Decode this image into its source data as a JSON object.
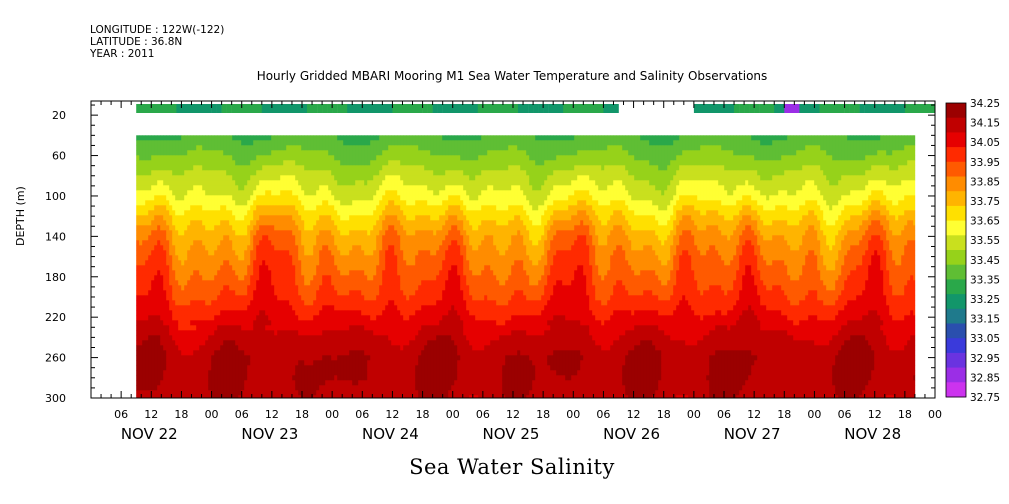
{
  "header": {
    "longitude": "LONGITUDE : 122W(-122)",
    "latitude": "LATITUDE : 36.8N",
    "year": "YEAR : 2011"
  },
  "chart_data": {
    "type": "heatmap",
    "title": "Hourly Gridded MBARI Mooring M1 Sea Water Temperature and Salinity Observations",
    "bottom_title": "Sea Water Salinity",
    "ylabel": "DEPTH (m)",
    "y_ticks": [
      20,
      60,
      100,
      140,
      180,
      220,
      260,
      300
    ],
    "y_range": [
      6,
      300
    ],
    "x_range_hours": [
      0,
      168
    ],
    "x_day_labels": [
      "NOV 22",
      "NOV 23",
      "NOV 24",
      "NOV 25",
      "NOV 26",
      "NOV 27",
      "NOV 28"
    ],
    "x_hour_ticks": [
      "06",
      "12",
      "18",
      "00",
      "06",
      "12",
      "18",
      "00",
      "06",
      "12",
      "18",
      "00",
      "06",
      "12",
      "18",
      "00",
      "06",
      "12",
      "18",
      "00",
      "06",
      "12",
      "18",
      "00",
      "06",
      "12",
      "18",
      "00"
    ],
    "data_start_hour": 9,
    "data_end_hour": 164,
    "surface_gap_hours": [
      105,
      120
    ],
    "colorbar": {
      "levels": [
        "34.25",
        "34.15",
        "34.05",
        "33.95",
        "33.85",
        "33.75",
        "33.65",
        "33.55",
        "33.45",
        "33.35",
        "33.25",
        "33.15",
        "33.05",
        "32.95",
        "32.85",
        "32.75"
      ],
      "colors": [
        "#9b0000",
        "#c00000",
        "#e60000",
        "#ff2a00",
        "#ff5a00",
        "#ff8c00",
        "#ffb400",
        "#ffe000",
        "#ffff33",
        "#c9e01e",
        "#96d21a",
        "#5fbe34",
        "#2aa84a",
        "#12966a",
        "#1f7a8c",
        "#2a4fae",
        "#3a3adb",
        "#6a33e0",
        "#9b2ee6",
        "#cc33ee"
      ]
    },
    "depth_profile": [
      {
        "depth": 10,
        "salinity": 33.28
      },
      {
        "depth": 40,
        "salinity": 33.35
      },
      {
        "depth": 60,
        "salinity": 33.43
      },
      {
        "depth": 80,
        "salinity": 33.52
      },
      {
        "depth": 100,
        "salinity": 33.6
      },
      {
        "depth": 120,
        "salinity": 33.72
      },
      {
        "depth": 140,
        "salinity": 33.82
      },
      {
        "depth": 160,
        "salinity": 33.88
      },
      {
        "depth": 180,
        "salinity": 33.93
      },
      {
        "depth": 200,
        "salinity": 33.98
      },
      {
        "depth": 220,
        "salinity": 34.05
      },
      {
        "depth": 240,
        "salinity": 34.12
      },
      {
        "depth": 260,
        "salinity": 34.17
      },
      {
        "depth": 280,
        "salinity": 34.17
      },
      {
        "depth": 300,
        "salinity": 34.15
      }
    ]
  }
}
